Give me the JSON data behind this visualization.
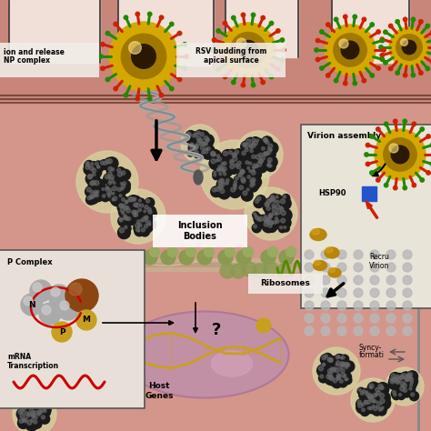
{
  "bg_color": "#d4968a",
  "cell_top_color": "#c8857a",
  "cell_interior_color": "#d9a090",
  "lumen_color": "#f0e0d8",
  "white_box_color": "#f2ede8",
  "inset_bg_left": "#e8e0d8",
  "inset_bg_right": "#e8e4d8",
  "nucleus_color": "#c090a8",
  "nucleus_border": "#b07898",
  "inclusion_dark": "#1a1a1a",
  "inclusion_mid": "#555555",
  "inclusion_halo": "#d4d4a0",
  "membrane_color": "#c8b090",
  "virion_outer": "#c8960a",
  "virion_mid": "#a07008",
  "virion_core": "#3a2000",
  "spike_red": "#cc2200",
  "spike_green": "#228800",
  "ribosome_color": "#9aaa50",
  "labels": {
    "inclusion_bodies": "Inclusion\nBodies",
    "rsv_budding": "RSV budding from\napical surface",
    "rnp_release": "ion and release\nNP complex",
    "ribosomes": "Ribosomes",
    "host_genes": "Host\nGenes",
    "mrna_transcription": "mRNA\nTranscription",
    "np_complex": "P Complex",
    "virion_assembly": "Virion assembly",
    "hsp90": "HSP90",
    "recru_virion": "Recru\nVirion",
    "syncy_formation": "Syncy\nformati"
  }
}
